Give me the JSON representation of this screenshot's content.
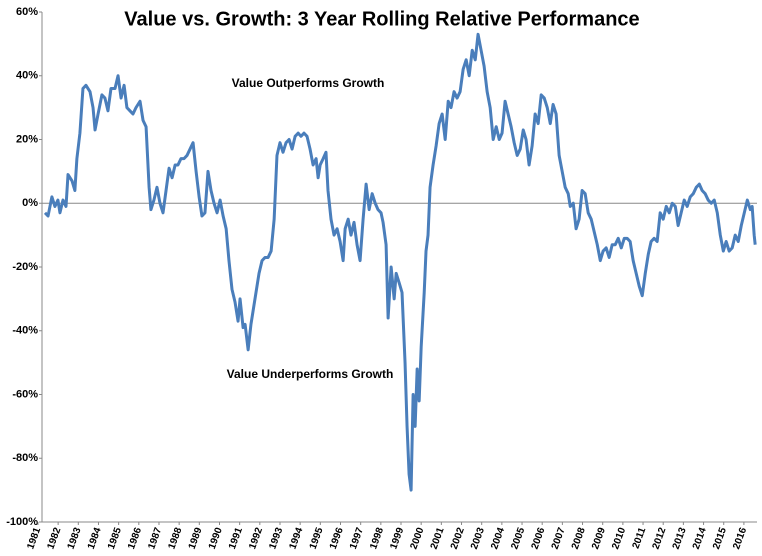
{
  "chart_data": {
    "type": "line",
    "title": "Value vs. Growth: 3 Year Rolling Relative Performance",
    "annotations": [
      "Value Outperforms Growth",
      "Value Underperforms Growth"
    ],
    "annotation_colors": [
      "#1a9a3a",
      "#e0181b"
    ],
    "xlim": [
      1981.2,
      2016.65
    ],
    "xticks": [
      1981,
      1982,
      1983,
      1984,
      1985,
      1986,
      1987,
      1988,
      1989,
      1990,
      1991,
      1992,
      1993,
      1994,
      1995,
      1996,
      1997,
      1998,
      1999,
      2000,
      2001,
      2002,
      2003,
      2004,
      2005,
      2006,
      2007,
      2008,
      2009,
      2010,
      2011,
      2012,
      2013,
      2014,
      2015,
      2016
    ],
    "ylim": [
      -100,
      60
    ],
    "yticks": [
      {
        "value": -100,
        "label": "-100%"
      },
      {
        "value": -80,
        "label": "-80%"
      },
      {
        "value": -60,
        "label": "-60%"
      },
      {
        "value": -40,
        "label": "-40%"
      },
      {
        "value": -20,
        "label": "-20%"
      },
      {
        "value": 0,
        "label": "0%"
      },
      {
        "value": 20,
        "label": "20%"
      },
      {
        "value": 40,
        "label": "40%"
      },
      {
        "value": 60,
        "label": "60%"
      }
    ],
    "x": [
      1981.35,
      1981.5,
      1981.69,
      1981.84,
      1981.99,
      1982.09,
      1982.24,
      1982.39,
      1982.49,
      1982.69,
      1982.83,
      1982.93,
      1983.08,
      1983.23,
      1983.38,
      1983.58,
      1983.73,
      1983.83,
      1983.98,
      1984.17,
      1984.32,
      1984.47,
      1984.62,
      1984.82,
      1984.97,
      1985.12,
      1985.27,
      1985.41,
      1985.56,
      1985.71,
      1985.86,
      1986.06,
      1986.21,
      1986.36,
      1986.51,
      1986.6,
      1986.75,
      1986.9,
      1987.05,
      1987.2,
      1987.35,
      1987.5,
      1987.65,
      1987.8,
      1987.94,
      1988.09,
      1988.24,
      1988.39,
      1988.54,
      1988.69,
      1988.84,
      1988.99,
      1989.13,
      1989.28,
      1989.43,
      1989.58,
      1989.73,
      1989.88,
      1990.03,
      1990.18,
      1990.33,
      1990.47,
      1990.62,
      1990.77,
      1990.92,
      1991.02,
      1991.17,
      1991.27,
      1991.42,
      1991.56,
      1991.66,
      1991.81,
      1991.96,
      1992.11,
      1992.26,
      1992.41,
      1992.56,
      1992.71,
      1992.85,
      1993.0,
      1993.15,
      1993.3,
      1993.45,
      1993.6,
      1993.75,
      1993.9,
      1994.04,
      1994.19,
      1994.34,
      1994.49,
      1994.64,
      1994.79,
      1994.89,
      1994.99,
      1995.14,
      1995.28,
      1995.38,
      1995.53,
      1995.68,
      1995.83,
      1995.98,
      1996.13,
      1996.23,
      1996.38,
      1996.52,
      1996.67,
      1996.82,
      1996.97,
      1997.12,
      1997.27,
      1997.42,
      1997.57,
      1997.72,
      1997.86,
      1998.01,
      1998.11,
      1998.26,
      1998.36,
      1998.51,
      1998.66,
      1998.76,
      1998.91,
      1999.05,
      1999.2,
      1999.3,
      1999.4,
      1999.5,
      1999.6,
      1999.7,
      1999.8,
      1999.9,
      2000.0,
      2000.15,
      2000.24,
      2000.34,
      2000.44,
      2000.59,
      2000.74,
      2000.89,
      2001.04,
      2001.19,
      2001.34,
      2001.48,
      2001.63,
      2001.78,
      2001.93,
      2002.08,
      2002.23,
      2002.38,
      2002.53,
      2002.68,
      2002.82,
      2002.97,
      2003.12,
      2003.27,
      2003.42,
      2003.57,
      2003.72,
      2003.87,
      2004.01,
      2004.16,
      2004.31,
      2004.46,
      2004.61,
      2004.76,
      2004.91,
      2005.06,
      2005.2,
      2005.35,
      2005.5,
      2005.65,
      2005.8,
      2005.95,
      2006.1,
      2006.25,
      2006.4,
      2006.54,
      2006.69,
      2006.84,
      2006.99,
      2007.14,
      2007.29,
      2007.39,
      2007.54,
      2007.68,
      2007.83,
      2007.98,
      2008.13,
      2008.28,
      2008.43,
      2008.58,
      2008.73,
      2008.88,
      2009.02,
      2009.17,
      2009.32,
      2009.47,
      2009.62,
      2009.77,
      2009.92,
      2010.07,
      2010.21,
      2010.36,
      2010.51,
      2010.66,
      2010.81,
      2010.96,
      2011.11,
      2011.26,
      2011.4,
      2011.55,
      2011.7,
      2011.85,
      2012.0,
      2012.15,
      2012.3,
      2012.45,
      2012.6,
      2012.74,
      2012.89,
      2013.04,
      2013.19,
      2013.34,
      2013.49,
      2013.64,
      2013.79,
      2013.93,
      2014.08,
      2014.23,
      2014.38,
      2014.53,
      2014.68,
      2014.83,
      2014.98,
      2015.12,
      2015.27,
      2015.42,
      2015.57,
      2015.72,
      2015.87,
      2016.02,
      2016.17,
      2016.32,
      2016.41,
      2016.51,
      2016.56
    ],
    "series": [
      {
        "color": "#4a7ebb",
        "values": [
          -3,
          -4,
          2,
          -1,
          1,
          -3,
          1,
          -1,
          9,
          7,
          4,
          14,
          22,
          36,
          37,
          35,
          30,
          23,
          28,
          34,
          33,
          29,
          36,
          36,
          40,
          33,
          37,
          30,
          29,
          28,
          30,
          32,
          26,
          24,
          5,
          -2,
          1,
          5,
          0,
          -3,
          4,
          11,
          8,
          12,
          12,
          14,
          14,
          15,
          17,
          19,
          10,
          2,
          -4,
          -3,
          10,
          4,
          0,
          -3,
          1,
          -4,
          -8,
          -18,
          -27,
          -31,
          -37,
          -30,
          -39,
          -38,
          -46,
          -38,
          -34,
          -28,
          -22,
          -18,
          -17,
          -17,
          -15,
          -5,
          15,
          19,
          16,
          19,
          20,
          17,
          21,
          22,
          21,
          22,
          21,
          17,
          12,
          14,
          8,
          12,
          14,
          16,
          4,
          -5,
          -10,
          -8,
          -12,
          -18,
          -8,
          -5,
          -10,
          -6,
          -13,
          -18,
          -5,
          6,
          -2,
          3,
          0,
          -2,
          -3,
          -6,
          -13,
          -36,
          -20,
          -30,
          -22,
          -25,
          -28,
          -50,
          -70,
          -85,
          -90,
          -60,
          -70,
          -52,
          -62,
          -45,
          -28,
          -15,
          -10,
          5,
          12,
          18,
          25,
          28,
          20,
          32,
          30,
          35,
          33,
          35,
          42,
          45,
          40,
          48,
          45,
          53,
          48,
          43,
          35,
          30,
          20,
          24,
          20,
          22,
          32,
          28,
          24,
          19,
          15,
          17,
          23,
          20,
          12,
          18,
          28,
          25,
          34,
          33,
          30,
          25,
          31,
          28,
          15,
          10,
          5,
          3,
          -1,
          0,
          -8,
          -5,
          4,
          3,
          -3,
          -5,
          -9,
          -13,
          -18,
          -15,
          -14,
          -17,
          -13,
          -13,
          -11,
          -14,
          -11,
          -11,
          -12,
          -18,
          -22,
          -26,
          -29,
          -22,
          -16,
          -12,
          -11,
          -12,
          -3,
          -5,
          -1,
          -3,
          0,
          -1,
          -7,
          -3,
          1,
          -1,
          2,
          3,
          5,
          6,
          4,
          3,
          1,
          0,
          1,
          -3,
          -10,
          -15,
          -12,
          -15,
          -14,
          -10,
          -12,
          -7,
          -3,
          1,
          -2,
          -1,
          -10,
          -13
        ]
      }
    ]
  }
}
